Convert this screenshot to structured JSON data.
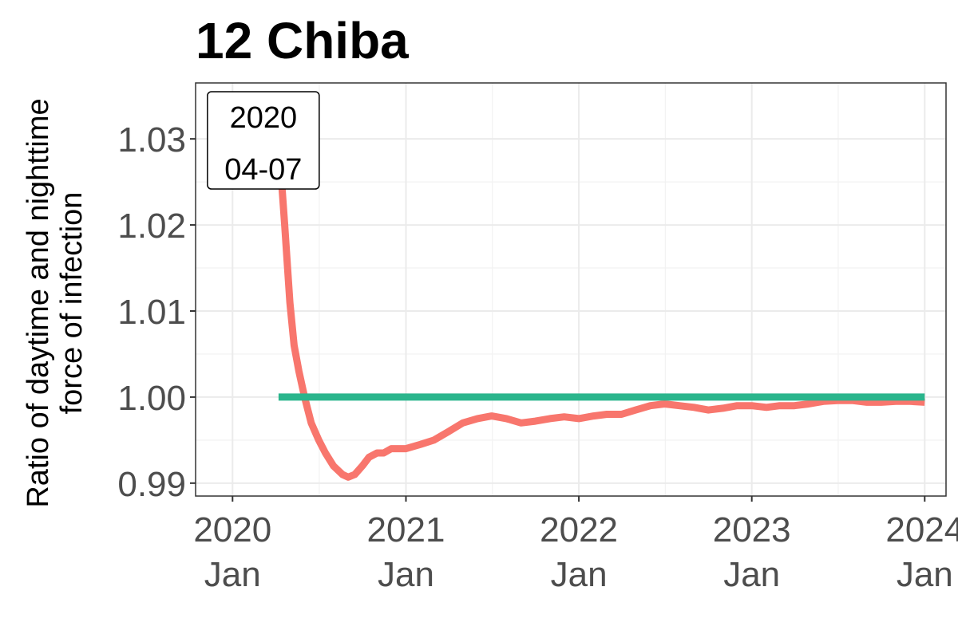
{
  "chart_data": {
    "type": "line",
    "title": "12 Chiba",
    "ylabel_lines": [
      "Ratio of daytime and nighttime",
      "force of infection"
    ],
    "xlabel": "",
    "y_ticks": [
      {
        "value": 0.99,
        "label": "0.99"
      },
      {
        "value": 1.0,
        "label": "1.00"
      },
      {
        "value": 1.01,
        "label": "1.01"
      },
      {
        "value": 1.02,
        "label": "1.02"
      },
      {
        "value": 1.03,
        "label": "1.03"
      }
    ],
    "x_ticks": [
      {
        "value": "2020-01-01",
        "line1": "2020",
        "line2": "Jan"
      },
      {
        "value": "2021-01-01",
        "line1": "2021",
        "line2": "Jan"
      },
      {
        "value": "2022-01-01",
        "line1": "2022",
        "line2": "Jan"
      },
      {
        "value": "2023-01-01",
        "line1": "2023",
        "line2": "Jan"
      },
      {
        "value": "2024-01-01",
        "line1": "2024",
        "line2": "Jan"
      }
    ],
    "xlim": [
      "2019-10-15",
      "2024-02-15"
    ],
    "ylim": [
      0.9885,
      1.0365
    ],
    "grid": true,
    "annotation": {
      "x": "2020-04-07",
      "line1": "2020",
      "line2": "04-07"
    },
    "series": [
      {
        "color": "#F8766D",
        "points": [
          [
            "2020-04-07",
            1.03
          ],
          [
            "2020-04-20",
            1.02
          ],
          [
            "2020-05-01",
            1.011
          ],
          [
            "2020-05-10",
            1.006
          ],
          [
            "2020-05-20",
            1.003
          ],
          [
            "2020-06-01",
            1.0
          ],
          [
            "2020-06-15",
            0.997
          ],
          [
            "2020-07-01",
            0.995
          ],
          [
            "2020-07-15",
            0.9935
          ],
          [
            "2020-08-01",
            0.992
          ],
          [
            "2020-08-20",
            0.991
          ],
          [
            "2020-09-01",
            0.9907
          ],
          [
            "2020-09-15",
            0.991
          ],
          [
            "2020-10-01",
            0.992
          ],
          [
            "2020-10-15",
            0.993
          ],
          [
            "2020-11-01",
            0.9935
          ],
          [
            "2020-11-15",
            0.9935
          ],
          [
            "2020-12-01",
            0.994
          ],
          [
            "2021-01-01",
            0.994
          ],
          [
            "2021-02-01",
            0.9945
          ],
          [
            "2021-03-01",
            0.995
          ],
          [
            "2021-04-01",
            0.996
          ],
          [
            "2021-05-01",
            0.997
          ],
          [
            "2021-06-01",
            0.9975
          ],
          [
            "2021-07-01",
            0.9978
          ],
          [
            "2021-08-01",
            0.9975
          ],
          [
            "2021-09-01",
            0.997
          ],
          [
            "2021-10-01",
            0.9972
          ],
          [
            "2021-11-01",
            0.9975
          ],
          [
            "2021-12-01",
            0.9977
          ],
          [
            "2022-01-01",
            0.9975
          ],
          [
            "2022-02-01",
            0.9978
          ],
          [
            "2022-03-01",
            0.998
          ],
          [
            "2022-04-01",
            0.998
          ],
          [
            "2022-05-01",
            0.9985
          ],
          [
            "2022-06-01",
            0.999
          ],
          [
            "2022-07-01",
            0.9992
          ],
          [
            "2022-08-01",
            0.999
          ],
          [
            "2022-09-01",
            0.9988
          ],
          [
            "2022-10-01",
            0.9985
          ],
          [
            "2022-11-01",
            0.9987
          ],
          [
            "2022-12-01",
            0.999
          ],
          [
            "2023-01-01",
            0.999
          ],
          [
            "2023-02-01",
            0.9988
          ],
          [
            "2023-03-01",
            0.999
          ],
          [
            "2023-04-01",
            0.999
          ],
          [
            "2023-05-01",
            0.9992
          ],
          [
            "2023-06-01",
            0.9995
          ],
          [
            "2023-07-01",
            0.9996
          ],
          [
            "2023-08-01",
            0.9996
          ],
          [
            "2023-09-01",
            0.9994
          ],
          [
            "2023-10-01",
            0.9994
          ],
          [
            "2023-11-01",
            0.9995
          ],
          [
            "2023-12-01",
            0.9995
          ],
          [
            "2024-01-01",
            0.9994
          ]
        ]
      },
      {
        "color": "#2AB58C",
        "points": [
          [
            "2020-04-07",
            1.0
          ],
          [
            "2024-01-01",
            1.0
          ]
        ]
      }
    ]
  }
}
